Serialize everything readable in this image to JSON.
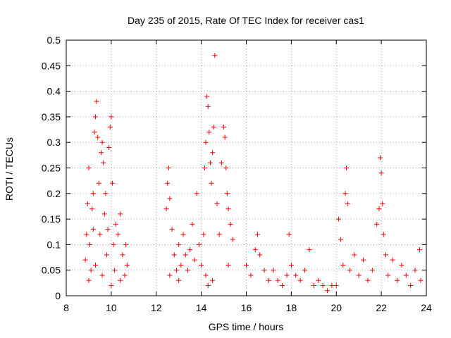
{
  "chart_data": {
    "type": "scatter",
    "title": "Day 235 of 2015, Rate Of TEC Index for receiver cas1",
    "xlabel": "GPS time / hours",
    "ylabel": "ROTI / TECUs",
    "xlim": [
      8,
      24
    ],
    "ylim": [
      0,
      0.5
    ],
    "x_ticks": [
      8,
      10,
      12,
      14,
      16,
      18,
      20,
      22,
      24
    ],
    "x_tick_labels": [
      "8",
      "10",
      "12",
      "14",
      "16",
      "18",
      "20",
      "22",
      "24"
    ],
    "y_ticks": [
      0,
      0.05,
      0.1,
      0.15,
      0.2,
      0.25,
      0.3,
      0.35,
      0.4,
      0.45,
      0.5
    ],
    "y_tick_labels": [
      "0",
      "0.05",
      "0.1",
      "0.15",
      "0.2",
      "0.25",
      "0.3",
      "0.35",
      "0.4",
      "0.45",
      "0.5"
    ],
    "grid": true,
    "marker": "+",
    "color": "#ff0000",
    "series": [
      {
        "name": "cas1",
        "points": [
          [
            8.85,
            0.07
          ],
          [
            8.9,
            0.12
          ],
          [
            8.95,
            0.18
          ],
          [
            9.0,
            0.25
          ],
          [
            9.05,
            0.1
          ],
          [
            9.1,
            0.05
          ],
          [
            9.15,
            0.17
          ],
          [
            9.2,
            0.13
          ],
          [
            9.25,
            0.32
          ],
          [
            9.3,
            0.35
          ],
          [
            9.35,
            0.38
          ],
          [
            9.4,
            0.31
          ],
          [
            9.45,
            0.22
          ],
          [
            9.5,
            0.12
          ],
          [
            9.55,
            0.28
          ],
          [
            9.6,
            0.3
          ],
          [
            9.65,
            0.26
          ],
          [
            9.7,
            0.16
          ],
          [
            9.75,
            0.2
          ],
          [
            9.8,
            0.08
          ],
          [
            9.85,
            0.13
          ],
          [
            9.9,
            0.29
          ],
          [
            9.95,
            0.33
          ],
          [
            10.0,
            0.35
          ],
          [
            10.05,
            0.22
          ],
          [
            10.1,
            0.1
          ],
          [
            10.15,
            0.05
          ],
          [
            10.2,
            0.14
          ],
          [
            10.3,
            0.12
          ],
          [
            10.4,
            0.16
          ],
          [
            10.5,
            0.08
          ],
          [
            10.6,
            0.04
          ],
          [
            10.65,
            0.1
          ],
          [
            10.7,
            0.06
          ],
          [
            9.0,
            0.03
          ],
          [
            9.3,
            0.06
          ],
          [
            9.6,
            0.04
          ],
          [
            10.0,
            0.02
          ],
          [
            10.4,
            0.03
          ],
          [
            9.2,
            0.2
          ],
          [
            12.45,
            0.17
          ],
          [
            12.5,
            0.22
          ],
          [
            12.55,
            0.25
          ],
          [
            12.6,
            0.19
          ],
          [
            12.7,
            0.13
          ],
          [
            12.8,
            0.08
          ],
          [
            12.9,
            0.05
          ],
          [
            13.0,
            0.1
          ],
          [
            13.1,
            0.06
          ],
          [
            13.2,
            0.12
          ],
          [
            13.3,
            0.08
          ],
          [
            13.4,
            0.05
          ],
          [
            13.5,
            0.09
          ],
          [
            13.6,
            0.14
          ],
          [
            13.7,
            0.07
          ],
          [
            13.8,
            0.2
          ],
          [
            13.9,
            0.1
          ],
          [
            14.0,
            0.06
          ],
          [
            14.1,
            0.12
          ],
          [
            14.15,
            0.25
          ],
          [
            14.2,
            0.3
          ],
          [
            14.25,
            0.39
          ],
          [
            14.3,
            0.37
          ],
          [
            14.35,
            0.32
          ],
          [
            14.4,
            0.26
          ],
          [
            14.45,
            0.22
          ],
          [
            14.5,
            0.28
          ],
          [
            14.55,
            0.33
          ],
          [
            14.6,
            0.47
          ],
          [
            14.7,
            0.18
          ],
          [
            14.8,
            0.12
          ],
          [
            14.9,
            0.26
          ],
          [
            15.0,
            0.33
          ],
          [
            15.05,
            0.31
          ],
          [
            15.1,
            0.25
          ],
          [
            15.15,
            0.2
          ],
          [
            15.2,
            0.17
          ],
          [
            15.3,
            0.14
          ],
          [
            15.4,
            0.11
          ],
          [
            14.3,
            0.02
          ],
          [
            14.5,
            0.03
          ],
          [
            14.2,
            0.04
          ],
          [
            15.2,
            0.06
          ],
          [
            12.6,
            0.04
          ],
          [
            13.0,
            0.03
          ],
          [
            16.0,
            0.06
          ],
          [
            16.2,
            0.04
          ],
          [
            16.4,
            0.09
          ],
          [
            16.5,
            0.12
          ],
          [
            16.6,
            0.08
          ],
          [
            16.8,
            0.05
          ],
          [
            17.0,
            0.03
          ],
          [
            17.2,
            0.05
          ],
          [
            17.4,
            0.03
          ],
          [
            17.6,
            0.02
          ],
          [
            17.8,
            0.04
          ],
          [
            17.9,
            0.12
          ],
          [
            18.0,
            0.06
          ],
          [
            18.2,
            0.04
          ],
          [
            18.4,
            0.03
          ],
          [
            18.6,
            0.05
          ],
          [
            18.8,
            0.09
          ],
          [
            19.0,
            0.02
          ],
          [
            19.2,
            0.03
          ],
          [
            19.4,
            0.02
          ],
          [
            19.6,
            0.01
          ],
          [
            19.8,
            0.02
          ],
          [
            20.0,
            0.02
          ],
          [
            20.1,
            0.15
          ],
          [
            20.2,
            0.11
          ],
          [
            20.3,
            0.06
          ],
          [
            20.4,
            0.2
          ],
          [
            20.45,
            0.25
          ],
          [
            20.5,
            0.18
          ],
          [
            20.6,
            0.05
          ],
          [
            20.8,
            0.08
          ],
          [
            21.0,
            0.04
          ],
          [
            21.2,
            0.07
          ],
          [
            21.4,
            0.03
          ],
          [
            21.6,
            0.05
          ],
          [
            21.8,
            0.14
          ],
          [
            21.9,
            0.17
          ],
          [
            21.95,
            0.27
          ],
          [
            22.0,
            0.24
          ],
          [
            22.05,
            0.18
          ],
          [
            22.1,
            0.12
          ],
          [
            22.2,
            0.08
          ],
          [
            22.3,
            0.04
          ],
          [
            22.5,
            0.07
          ],
          [
            22.7,
            0.03
          ],
          [
            22.9,
            0.06
          ],
          [
            23.1,
            0.04
          ],
          [
            23.3,
            0.02
          ],
          [
            23.5,
            0.05
          ],
          [
            23.7,
            0.09
          ],
          [
            23.75,
            0.03
          ]
        ]
      }
    ]
  }
}
